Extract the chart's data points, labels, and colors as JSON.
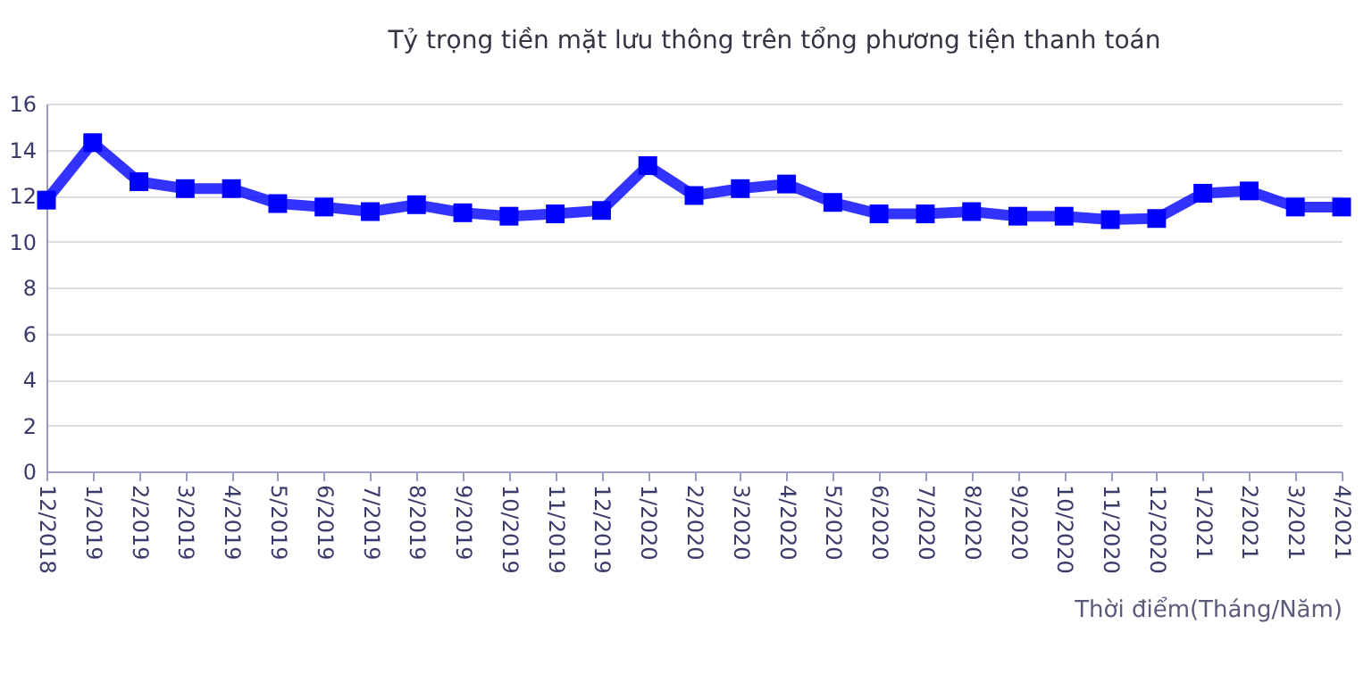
{
  "chart_data": {
    "type": "line",
    "title": "Tỷ trọng tiền mặt lưu thông trên tổng phương tiện thanh toán",
    "xlabel": "Thời điểm(Tháng/Năm)",
    "categories": [
      "12/2018",
      "1/2019",
      "2/2019",
      "3/2019",
      "4/2019",
      "5/2019",
      "6/2019",
      "7/2019",
      "8/2019",
      "9/2019",
      "10/2019",
      "11/2019",
      "12/2019",
      "1/2020",
      "2/2020",
      "3/2020",
      "4/2020",
      "5/2020",
      "6/2020",
      "7/2020",
      "8/2020",
      "9/2020",
      "10/2020",
      "11/2020",
      "12/2020",
      "1/2021",
      "2/2021",
      "3/2021",
      "4/2021"
    ],
    "series": [
      {
        "color": "#0000ff",
        "values": [
          11.8,
          14.3,
          12.6,
          12.3,
          12.3,
          11.65,
          11.5,
          11.3,
          11.6,
          11.25,
          11.1,
          11.2,
          11.35,
          13.3,
          12.0,
          12.3,
          12.5,
          11.7,
          11.2,
          11.2,
          11.3,
          11.1,
          11.1,
          10.95,
          11.0,
          12.1,
          12.2,
          11.5,
          11.5
        ]
      }
    ],
    "ylim": [
      0,
      16
    ],
    "yticks": [
      0,
      2,
      4,
      6,
      8,
      10,
      12,
      14,
      16
    ],
    "grid": "y",
    "marker": "square",
    "line_style": "solid",
    "legend": false
  }
}
